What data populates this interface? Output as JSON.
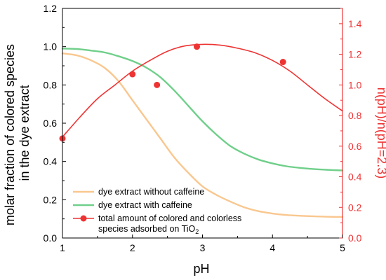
{
  "chart_data": {
    "type": "line",
    "xlabel": "pH",
    "ylabel_left_line1": "molar fraction of colored species",
    "ylabel_left_line2": "in the dye extract",
    "ylabel_right": "n(pH)/n(pH=2.3)",
    "xlim": [
      1,
      5
    ],
    "ylim_left": [
      0,
      1.2
    ],
    "ylim_right": [
      0,
      1.5
    ],
    "xticks": [
      "1",
      "2",
      "3",
      "4",
      "5"
    ],
    "yticks_left": [
      "0.0",
      "0.2",
      "0.4",
      "0.6",
      "0.8",
      "1.0",
      "1.2"
    ],
    "yticks_right": [
      "0.0",
      "0.2",
      "0.4",
      "0.6",
      "0.8",
      "1.0",
      "1.2",
      "1.4"
    ],
    "colors": {
      "orange": "#f9c78f",
      "green": "#6fcf8a",
      "red": "#ee3333",
      "right_axis": "#ee3333"
    },
    "legend_placement": "bottom-left",
    "series": [
      {
        "name": "dye extract without caffeine",
        "axis": "left",
        "color": "#f9c78f",
        "x": [
          1.0,
          1.2,
          1.4,
          1.6,
          1.8,
          2.0,
          2.2,
          2.4,
          2.6,
          2.8,
          3.0,
          3.2,
          3.4,
          3.6,
          3.8,
          4.0,
          4.2,
          4.4,
          4.6,
          4.8,
          5.0
        ],
        "y": [
          0.965,
          0.955,
          0.93,
          0.89,
          0.82,
          0.72,
          0.62,
          0.52,
          0.42,
          0.34,
          0.27,
          0.225,
          0.19,
          0.16,
          0.14,
          0.128,
          0.12,
          0.116,
          0.113,
          0.111,
          0.11
        ]
      },
      {
        "name": "dye extract with caffeine",
        "axis": "left",
        "color": "#6fcf8a",
        "x": [
          1.0,
          1.2,
          1.4,
          1.6,
          1.8,
          2.0,
          2.2,
          2.4,
          2.6,
          2.8,
          3.0,
          3.2,
          3.4,
          3.6,
          3.8,
          4.0,
          4.2,
          4.4,
          4.6,
          4.8,
          5.0
        ],
        "y": [
          0.99,
          0.988,
          0.98,
          0.97,
          0.95,
          0.925,
          0.89,
          0.84,
          0.77,
          0.69,
          0.61,
          0.54,
          0.48,
          0.44,
          0.41,
          0.39,
          0.375,
          0.366,
          0.36,
          0.356,
          0.353
        ]
      },
      {
        "name_line1": "total amount of colored and colorless",
        "name_line2_prefix": "species adsorbed on TiO",
        "name_line2_sub": "2",
        "axis": "right",
        "color": "#ee3333",
        "x": [
          1.0,
          1.25,
          1.5,
          1.75,
          2.0,
          2.25,
          2.5,
          2.75,
          3.0,
          3.25,
          3.5,
          3.75,
          4.0,
          4.25,
          4.5,
          4.75,
          5.0
        ],
        "y": [
          0.66,
          0.79,
          0.91,
          1.0,
          1.09,
          1.16,
          1.22,
          1.255,
          1.265,
          1.26,
          1.24,
          1.21,
          1.16,
          1.09,
          1.0,
          0.91,
          0.83
        ],
        "points": [
          {
            "x": 1.0,
            "y": 0.65
          },
          {
            "x": 2.0,
            "y": 1.07
          },
          {
            "x": 2.35,
            "y": 1.0
          },
          {
            "x": 2.92,
            "y": 1.25
          },
          {
            "x": 4.15,
            "y": 1.15
          }
        ]
      }
    ]
  }
}
